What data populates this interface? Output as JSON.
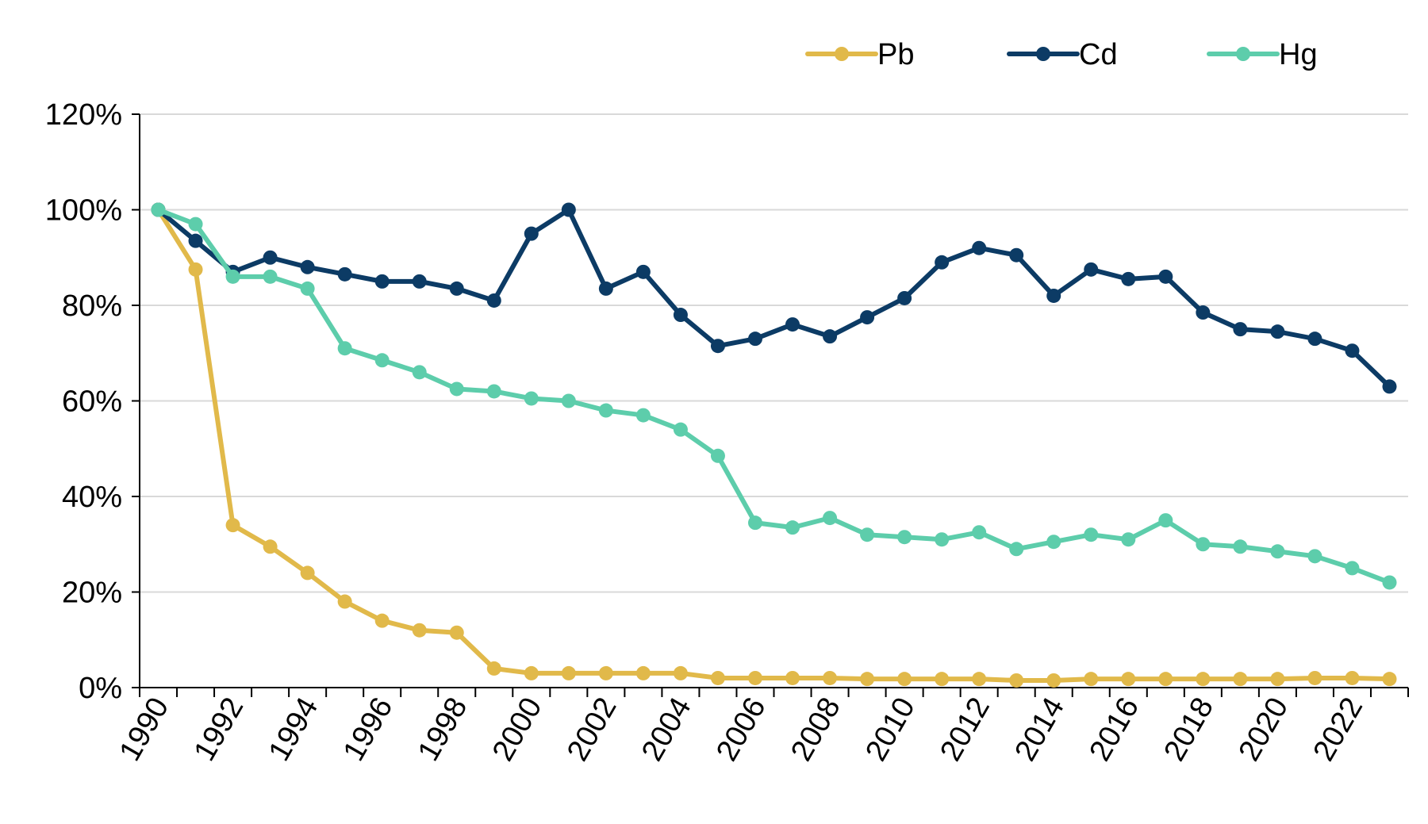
{
  "chart_data": {
    "type": "line",
    "title": "",
    "xlabel": "",
    "ylabel": "",
    "x": [
      1990,
      1991,
      1992,
      1993,
      1994,
      1995,
      1996,
      1997,
      1998,
      1999,
      2000,
      2001,
      2002,
      2003,
      2004,
      2005,
      2006,
      2007,
      2008,
      2009,
      2010,
      2011,
      2012,
      2013,
      2014,
      2015,
      2016,
      2017,
      2018,
      2019,
      2020,
      2021,
      2022,
      2023
    ],
    "x_tick_labels": [
      "1990",
      "1992",
      "1994",
      "1996",
      "1998",
      "2000",
      "2002",
      "2004",
      "2006",
      "2008",
      "2010",
      "2012",
      "2014",
      "2016",
      "2018",
      "2020",
      "2022"
    ],
    "y_tick_labels": [
      "0%",
      "20%",
      "40%",
      "60%",
      "80%",
      "100%",
      "120%"
    ],
    "ylim": [
      0,
      120
    ],
    "y_unit": "%",
    "grid": "horizontal",
    "legend_position": "top-right",
    "series": [
      {
        "name": "Pb",
        "color": "#E1B94A",
        "values": [
          100,
          87.5,
          34,
          29.5,
          24,
          18,
          14,
          12,
          11.5,
          4,
          3,
          3,
          3,
          3,
          3,
          2,
          2,
          2,
          2,
          1.8,
          1.8,
          1.8,
          1.8,
          1.5,
          1.5,
          1.8,
          1.8,
          1.8,
          1.8,
          1.8,
          1.8,
          2,
          2,
          1.8
        ]
      },
      {
        "name": "Cd",
        "color": "#0C3B65",
        "values": [
          100,
          93.5,
          87,
          90,
          88,
          86.5,
          85,
          85,
          83.5,
          81,
          95,
          100,
          83.5,
          87,
          78,
          71.5,
          73,
          76,
          73.5,
          77.5,
          81.5,
          89,
          92,
          90.5,
          82,
          87.5,
          85.5,
          86,
          78.5,
          75,
          74.5,
          73,
          70.5,
          63
        ]
      },
      {
        "name": "Hg",
        "color": "#5DCDAB",
        "values": [
          100,
          97,
          86,
          86,
          83.5,
          71,
          68.5,
          66,
          62.5,
          62,
          60.5,
          60,
          58,
          57,
          54,
          48.5,
          34.5,
          33.5,
          35.5,
          32,
          31.5,
          31,
          32.5,
          29,
          30.5,
          32,
          31,
          35,
          30,
          29.5,
          28.5,
          27.5,
          25,
          22
        ]
      }
    ]
  }
}
